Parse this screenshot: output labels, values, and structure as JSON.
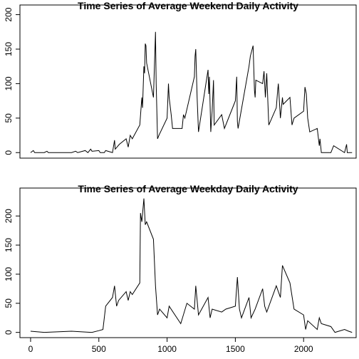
{
  "chart_data": [
    {
      "type": "line",
      "title": "Time Series of Average Weekend Daily Activity",
      "color": "#000000",
      "x": [
        0,
        20,
        30,
        100,
        120,
        130,
        300,
        330,
        345,
        400,
        420,
        440,
        450,
        500,
        510,
        540,
        550,
        600,
        615,
        620,
        650,
        700,
        715,
        730,
        745,
        800,
        815,
        820,
        830,
        835,
        840,
        845,
        850,
        855,
        900,
        915,
        920,
        930,
        940,
        1000,
        1010,
        1015,
        1030,
        1040,
        1100,
        1110,
        1120,
        1130,
        1200,
        1205,
        1210,
        1220,
        1230,
        1300,
        1305,
        1310,
        1320,
        1330,
        1340,
        1345,
        1400,
        1420,
        1500,
        1510,
        1515,
        1520,
        1600,
        1610,
        1630,
        1640,
        1645,
        1650,
        1700,
        1710,
        1720,
        1730,
        1745,
        1800,
        1810,
        1815,
        1830,
        1845,
        1850,
        1900,
        1915,
        1930,
        2000,
        2010,
        2020,
        2030,
        2045,
        2100,
        2115,
        2120,
        2130,
        2200,
        2220,
        2300,
        2315,
        2320,
        2355
      ],
      "values": [
        0,
        3,
        0,
        0,
        2,
        0,
        0,
        2,
        0,
        3,
        0,
        5,
        2,
        3,
        0,
        0,
        3,
        0,
        18,
        5,
        12,
        20,
        8,
        25,
        20,
        40,
        80,
        65,
        125,
        115,
        158,
        155,
        130,
        125,
        80,
        175,
        100,
        20,
        25,
        50,
        100,
        80,
        55,
        35,
        35,
        35,
        55,
        50,
        110,
        140,
        150,
        80,
        30,
        120,
        85,
        110,
        30,
        60,
        105,
        40,
        55,
        35,
        75,
        110,
        45,
        35,
        125,
        140,
        155,
        90,
        80,
        105,
        100,
        118,
        80,
        115,
        40,
        65,
        90,
        100,
        50,
        80,
        70,
        80,
        40,
        50,
        60,
        95,
        85,
        50,
        30,
        35,
        10,
        20,
        0,
        0,
        10,
        0,
        12,
        0,
        0
      ],
      "xlim": [
        -78,
        2385
      ],
      "ylim": [
        -8,
        214
      ],
      "yticks": [
        0,
        50,
        100,
        150,
        200
      ]
    },
    {
      "type": "line",
      "title": "Time Series of Average Weekday Daily Activity",
      "color": "#000000",
      "x": [
        0,
        100,
        300,
        450,
        500,
        530,
        550,
        600,
        615,
        630,
        645,
        700,
        715,
        730,
        745,
        800,
        805,
        815,
        830,
        840,
        850,
        900,
        915,
        930,
        945,
        1000,
        1015,
        1100,
        1145,
        1200,
        1210,
        1230,
        1300,
        1315,
        1330,
        1400,
        1430,
        1500,
        1515,
        1530,
        1545,
        1600,
        1615,
        1645,
        1700,
        1715,
        1730,
        1800,
        1830,
        1845,
        1900,
        1930,
        2000,
        2015,
        2030,
        2100,
        2115,
        2130,
        2200,
        2230,
        2300,
        2330,
        2355
      ],
      "values": [
        2,
        0,
        2,
        0,
        3,
        5,
        45,
        60,
        80,
        45,
        55,
        70,
        55,
        70,
        65,
        85,
        205,
        190,
        230,
        185,
        190,
        160,
        80,
        30,
        40,
        25,
        45,
        15,
        50,
        40,
        80,
        30,
        60,
        25,
        40,
        35,
        40,
        45,
        95,
        40,
        25,
        60,
        25,
        40,
        75,
        45,
        35,
        80,
        60,
        115,
        85,
        40,
        30,
        5,
        20,
        5,
        25,
        15,
        10,
        0,
        5,
        2,
        0
      ],
      "xlim": [
        -78,
        2385
      ],
      "ylim": [
        -9,
        248
      ],
      "yticks": [
        0,
        50,
        100,
        150,
        200
      ],
      "xticks": [
        0,
        500,
        1000,
        1500,
        2000
      ]
    }
  ]
}
